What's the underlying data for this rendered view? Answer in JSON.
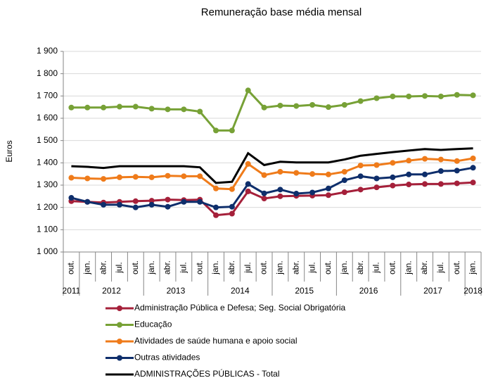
{
  "chart_data": {
    "type": "line",
    "title": "Remuneração  base média mensal",
    "y_label": "Euros",
    "categories": [
      "out.",
      "jan.",
      "abr.",
      "jul.",
      "out.",
      "jan.",
      "abr.",
      "jul.",
      "out.",
      "jan.",
      "abr.",
      "jul.",
      "out.",
      "jan.",
      "abr.",
      "jul.",
      "out.",
      "jan.",
      "abr.",
      "jul.",
      "out.",
      "jan.",
      "abr.",
      "jul.",
      "out.",
      "jan."
    ],
    "category_years": [
      "2011",
      "2012",
      "2012",
      "2012",
      "2012",
      "2013",
      "2013",
      "2013",
      "2013",
      "2014",
      "2014",
      "2014",
      "2014",
      "2015",
      "2015",
      "2015",
      "2015",
      "2016",
      "2016",
      "2016",
      "2016",
      "2017",
      "2017",
      "2017",
      "2017",
      "2018"
    ],
    "ylim": [
      1000,
      1900
    ],
    "yticks": [
      {
        "value": 1000,
        "label": "1 000"
      },
      {
        "value": 1100,
        "label": "1 100"
      },
      {
        "value": 1200,
        "label": "1 200"
      },
      {
        "value": 1300,
        "label": "1 300"
      },
      {
        "value": 1400,
        "label": "1 400"
      },
      {
        "value": 1500,
        "label": "1 500"
      },
      {
        "value": 1600,
        "label": "1 600"
      },
      {
        "value": 1700,
        "label": "1 700"
      },
      {
        "value": 1800,
        "label": "1 800"
      },
      {
        "value": 1900,
        "label": "1 900"
      }
    ],
    "grid": true,
    "legend": "bottom",
    "series": [
      {
        "name": "Administração Pública e Defesa; Seg. Social Obrigatória",
        "color": "#a5203a",
        "marker": "circle",
        "values": [
          1228,
          1225,
          1222,
          1225,
          1228,
          1230,
          1235,
          1233,
          1235,
          1165,
          1172,
          1272,
          1240,
          1250,
          1252,
          1253,
          1255,
          1268,
          1280,
          1290,
          1298,
          1303,
          1305,
          1305,
          1308,
          1312
        ]
      },
      {
        "name": "Educação",
        "color": "#77a136",
        "marker": "circle",
        "values": [
          1648,
          1648,
          1648,
          1652,
          1652,
          1643,
          1640,
          1640,
          1630,
          1545,
          1545,
          1725,
          1648,
          1657,
          1655,
          1660,
          1650,
          1660,
          1677,
          1690,
          1698,
          1698,
          1700,
          1698,
          1705,
          1703
        ]
      },
      {
        "name": "Atividades de saúde humana e apoio social",
        "color": "#ef7b1a",
        "marker": "circle",
        "values": [
          1333,
          1330,
          1328,
          1335,
          1337,
          1335,
          1342,
          1340,
          1340,
          1285,
          1282,
          1395,
          1345,
          1360,
          1355,
          1350,
          1348,
          1360,
          1388,
          1390,
          1400,
          1410,
          1418,
          1415,
          1408,
          1420
        ]
      },
      {
        "name": "Outras atividades",
        "color": "#0e2e6b",
        "marker": "circle",
        "values": [
          1243,
          1225,
          1212,
          1212,
          1200,
          1212,
          1203,
          1225,
          1225,
          1200,
          1203,
          1305,
          1263,
          1280,
          1262,
          1267,
          1285,
          1322,
          1340,
          1330,
          1335,
          1348,
          1348,
          1363,
          1365,
          1378
        ]
      },
      {
        "name": "ADMINISTRAÇÕES PÚBLICAS - Total",
        "color": "#000000",
        "marker": "none",
        "values": [
          1385,
          1382,
          1377,
          1385,
          1385,
          1385,
          1385,
          1385,
          1380,
          1310,
          1315,
          1443,
          1390,
          1405,
          1402,
          1402,
          1402,
          1415,
          1432,
          1440,
          1448,
          1455,
          1462,
          1458,
          1462,
          1465
        ]
      }
    ]
  }
}
